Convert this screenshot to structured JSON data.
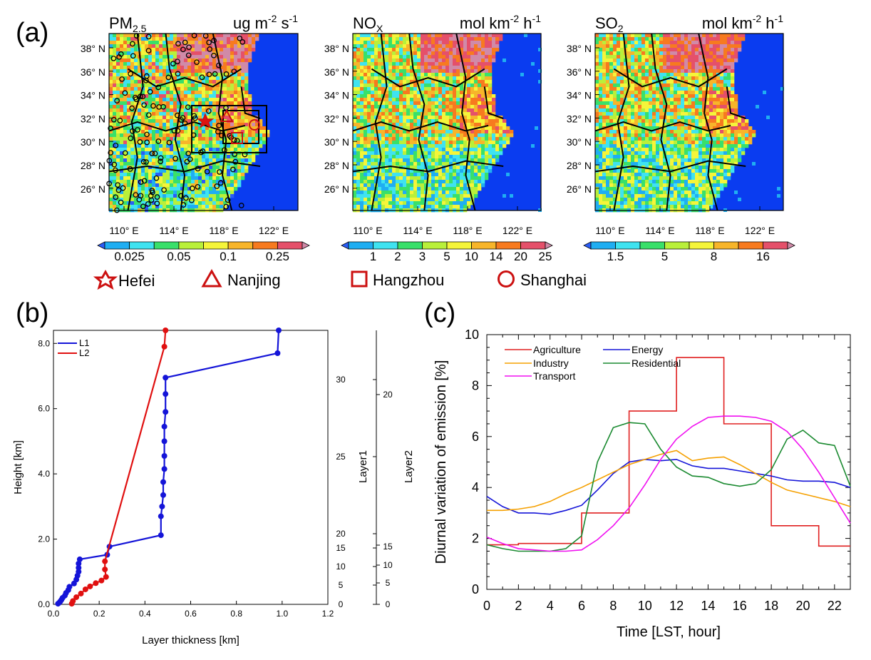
{
  "panel_a": {
    "label": "(a)",
    "maps": [
      {
        "species": "PM",
        "species_sub": "2.5",
        "units": "ug m",
        "units_exp1": "-2",
        "units_mid": " s",
        "units_exp2": "-1",
        "colorbar_labels": [
          "0.025",
          "0.05",
          "0.1",
          "0.25"
        ],
        "colors": [
          "#2b5df7",
          "#1faef2",
          "#3fe3f0",
          "#39e06a",
          "#b9f03a",
          "#f5f53a",
          "#f7b52a",
          "#f77a1f",
          "#e5506a",
          "#d08aa8"
        ]
      },
      {
        "species": "NO",
        "species_sub": "X",
        "units": "mol km",
        "units_exp1": "-2",
        "units_mid": " h",
        "units_exp2": "-1",
        "colorbar_labels": [
          "1",
          "2",
          "3",
          "5",
          "10",
          "14",
          "20",
          "25"
        ],
        "colors": [
          "#2b5df7",
          "#1faef2",
          "#3fe3f0",
          "#39e06a",
          "#b9f03a",
          "#f5f53a",
          "#f7b52a",
          "#f77a1f",
          "#e5506a",
          "#d08aa8"
        ]
      },
      {
        "species": "SO",
        "species_sub": "2",
        "units": "mol km",
        "units_exp1": "-2",
        "units_mid": " h",
        "units_exp2": "-1",
        "colorbar_labels": [
          "1.5",
          "5",
          "8",
          "16"
        ],
        "colors": [
          "#2b5df7",
          "#1faef2",
          "#3fe3f0",
          "#39e06a",
          "#b9f03a",
          "#f5f53a",
          "#f7b52a",
          "#f77a1f",
          "#e5506a",
          "#d08aa8"
        ]
      }
    ],
    "lat_labels": [
      "38° N",
      "36° N",
      "34° N",
      "32° N",
      "30° N",
      "28° N",
      "26° N"
    ],
    "lon_labels": [
      "110° E",
      "114° E",
      "118° E",
      "122° E"
    ],
    "legend": [
      {
        "symbol": "star",
        "label": "Hefei"
      },
      {
        "symbol": "triangle",
        "label": "Nanjing"
      },
      {
        "symbol": "square",
        "label": "Hangzhou"
      },
      {
        "symbol": "circle",
        "label": "Shanghai"
      }
    ]
  },
  "chart_data": [
    {
      "type": "line",
      "panel_label": "(b)",
      "xlabel": "Layer thickness [km]",
      "ylabel": "Height [km]",
      "xlim": [
        0,
        1.2
      ],
      "ylim": [
        0,
        8.4
      ],
      "x_ticks": [
        "0.0",
        "0.2",
        "0.4",
        "0.6",
        "0.8",
        "1.0",
        "1.2"
      ],
      "y_ticks": [
        "0.0",
        "2.0",
        "4.0",
        "6.0",
        "8.0"
      ],
      "right_axis_1": {
        "label": "Layer1",
        "ticks": [
          "0",
          "5",
          "10",
          "15",
          "20",
          "25",
          "30"
        ],
        "color": "#1414d8"
      },
      "right_axis_2": {
        "label": "Layer2",
        "ticks": [
          "0",
          "5",
          "10",
          "15",
          "20"
        ],
        "color": "#e01010"
      },
      "legend": "top-left",
      "series": [
        {
          "name": "L1",
          "color": "#1414d8",
          "points": [
            [
              0.02,
              0.02
            ],
            [
              0.025,
              0.05
            ],
            [
              0.03,
              0.09
            ],
            [
              0.035,
              0.14
            ],
            [
              0.04,
              0.2
            ],
            [
              0.05,
              0.27
            ],
            [
              0.055,
              0.35
            ],
            [
              0.065,
              0.44
            ],
            [
              0.07,
              0.54
            ],
            [
              0.09,
              0.64
            ],
            [
              0.1,
              0.76
            ],
            [
              0.105,
              0.88
            ],
            [
              0.11,
              1.0
            ],
            [
              0.11,
              1.12
            ],
            [
              0.11,
              1.25
            ],
            [
              0.115,
              1.38
            ],
            [
              0.235,
              1.52
            ],
            [
              0.245,
              1.77
            ],
            [
              0.47,
              2.12
            ],
            [
              0.47,
              2.7
            ],
            [
              0.475,
              3.0
            ],
            [
              0.48,
              3.35
            ],
            [
              0.48,
              3.75
            ],
            [
              0.485,
              4.15
            ],
            [
              0.485,
              4.55
            ],
            [
              0.485,
              5.0
            ],
            [
              0.485,
              5.45
            ],
            [
              0.49,
              5.9
            ],
            [
              0.49,
              6.45
            ],
            [
              0.49,
              6.95
            ],
            [
              0.98,
              7.7
            ],
            [
              0.985,
              8.4
            ]
          ]
        },
        {
          "name": "L2",
          "color": "#e01010",
          "points": [
            [
              0.08,
              0.02
            ],
            [
              0.085,
              0.1
            ],
            [
              0.1,
              0.22
            ],
            [
              0.12,
              0.33
            ],
            [
              0.14,
              0.46
            ],
            [
              0.16,
              0.55
            ],
            [
              0.185,
              0.65
            ],
            [
              0.21,
              0.73
            ],
            [
              0.23,
              0.84
            ],
            [
              0.225,
              1.07
            ],
            [
              0.225,
              1.32
            ],
            [
              0.485,
              7.9
            ],
            [
              0.49,
              8.4
            ]
          ]
        }
      ]
    },
    {
      "type": "line",
      "panel_label": "(c)",
      "xlabel": "Time [LST, hour]",
      "ylabel": "Diurnal variation of emission [%]",
      "xlim": [
        0,
        23
      ],
      "ylim": [
        0,
        10
      ],
      "x_ticks": [
        "0",
        "2",
        "4",
        "6",
        "8",
        "10",
        "12",
        "14",
        "16",
        "18",
        "20",
        "22"
      ],
      "y_ticks": [
        "0",
        "2",
        "4",
        "6",
        "8",
        "10"
      ],
      "legend": "top-left",
      "series": [
        {
          "name": "Agriculture",
          "color": "#e02020",
          "step": true,
          "values": [
            1.75,
            1.75,
            1.8,
            1.8,
            1.8,
            1.8,
            3.0,
            3.0,
            3.0,
            7.0,
            7.0,
            7.0,
            9.1,
            9.1,
            9.1,
            6.5,
            6.5,
            6.5,
            2.5,
            2.5,
            2.5,
            1.7,
            1.7,
            1.7
          ]
        },
        {
          "name": "Energy",
          "color": "#1414d8",
          "values": [
            3.65,
            3.25,
            3.0,
            3.0,
            2.95,
            3.1,
            3.3,
            3.9,
            4.55,
            5.0,
            5.1,
            5.05,
            5.1,
            4.85,
            4.75,
            4.75,
            4.65,
            4.55,
            4.45,
            4.3,
            4.25,
            4.25,
            4.2,
            4.0
          ]
        },
        {
          "name": "Industry",
          "color": "#f5a000",
          "values": [
            3.1,
            3.1,
            3.15,
            3.25,
            3.45,
            3.75,
            4.0,
            4.3,
            4.6,
            4.9,
            5.1,
            5.3,
            5.45,
            5.05,
            5.15,
            5.2,
            4.9,
            4.55,
            4.2,
            3.9,
            3.75,
            3.6,
            3.45,
            3.25
          ]
        },
        {
          "name": "Residential",
          "color": "#1a8a30",
          "values": [
            1.75,
            1.6,
            1.5,
            1.5,
            1.5,
            1.6,
            2.1,
            5.0,
            6.35,
            6.55,
            6.5,
            5.5,
            4.8,
            4.45,
            4.4,
            4.15,
            4.05,
            4.15,
            4.7,
            5.9,
            6.25,
            5.75,
            5.65,
            4.05
          ]
        },
        {
          "name": "Transport",
          "color": "#f010f0",
          "values": [
            2.05,
            1.8,
            1.6,
            1.55,
            1.5,
            1.5,
            1.55,
            1.95,
            2.5,
            3.2,
            4.1,
            5.1,
            5.9,
            6.4,
            6.75,
            6.8,
            6.8,
            6.75,
            6.6,
            6.2,
            5.5,
            4.6,
            3.6,
            2.6
          ]
        }
      ]
    }
  ]
}
